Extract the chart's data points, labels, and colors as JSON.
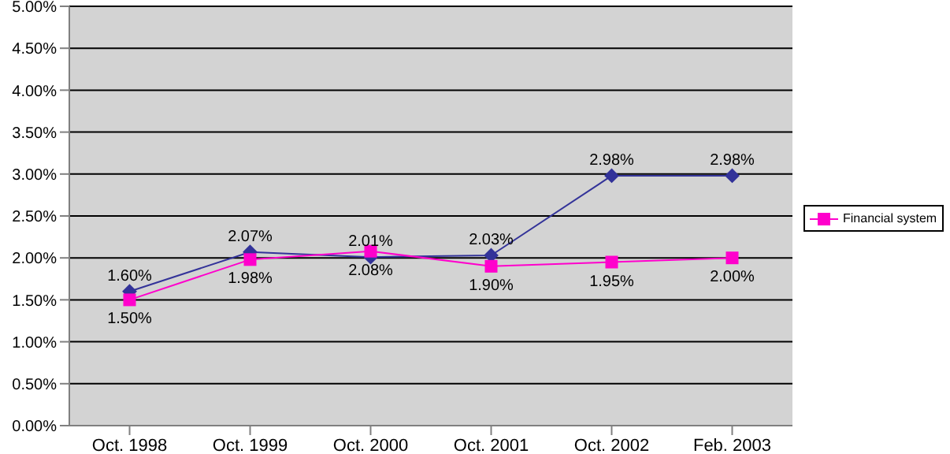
{
  "chart_data": {
    "type": "line",
    "categories": [
      "Oct. 1998",
      "Oct. 1999",
      "Oct. 2000",
      "Oct. 2001",
      "Oct. 2002",
      "Feb. 2003"
    ],
    "series": [
      {
        "color": "#333399",
        "marker": "diamond",
        "values": [
          1.6,
          2.07,
          2.01,
          2.03,
          2.98,
          2.98
        ],
        "value_labels": [
          "1.60%",
          "2.07%",
          "2.01%",
          "2.03%",
          "2.98%",
          "2.98%"
        ]
      },
      {
        "name": "Financial system",
        "color": "#ff00cc",
        "marker": "square",
        "values": [
          1.5,
          1.98,
          2.08,
          1.9,
          1.95,
          2.0
        ],
        "value_labels": [
          "1.50%",
          "1.98%",
          "2.08%",
          "1.90%",
          "1.95%",
          "2.00%"
        ]
      }
    ],
    "ylim": [
      0,
      5
    ],
    "yticks": [
      {
        "value": 0,
        "label": "0.00%"
      },
      {
        "value": 0.5,
        "label": "0.50%"
      },
      {
        "value": 1,
        "label": "1.00%"
      },
      {
        "value": 1.5,
        "label": "1.50%"
      },
      {
        "value": 2,
        "label": "2.00%"
      },
      {
        "value": 2.5,
        "label": "2.50%"
      },
      {
        "value": 3,
        "label": "3.00%"
      },
      {
        "value": 3.5,
        "label": "3.50%"
      },
      {
        "value": 4,
        "label": "4.00%"
      },
      {
        "value": 4.5,
        "label": "4.50%"
      },
      {
        "value": 5,
        "label": "5.00%"
      }
    ],
    "grid": "y",
    "legend": "right"
  }
}
